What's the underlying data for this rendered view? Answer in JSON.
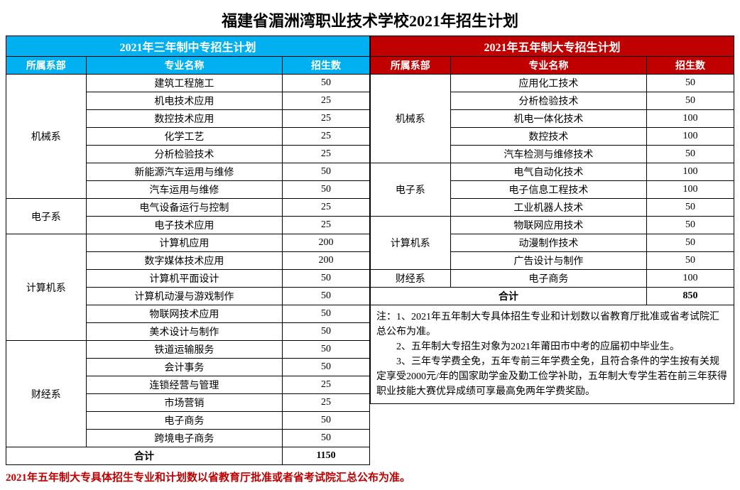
{
  "title": "福建省湄洲湾职业技术学校2021年招生计划",
  "left": {
    "header": "2021年三年制中专招生计划",
    "cols": [
      "所属系部",
      "专业名称",
      "招生数"
    ],
    "groups": [
      {
        "dept": "机械系",
        "rows": [
          [
            "建筑工程施工",
            "50"
          ],
          [
            "机电技术应用",
            "25"
          ],
          [
            "数控技术应用",
            "25"
          ],
          [
            "化学工艺",
            "25"
          ],
          [
            "分析检验技术",
            "25"
          ],
          [
            "新能源汽车运用与维修",
            "50"
          ],
          [
            "汽车运用与维修",
            "50"
          ]
        ]
      },
      {
        "dept": "电子系",
        "rows": [
          [
            "电气设备运行与控制",
            "25"
          ],
          [
            "电子技术应用",
            "25"
          ]
        ]
      },
      {
        "dept": "计算机系",
        "rows": [
          [
            "计算机应用",
            "200"
          ],
          [
            "数字媒体技术应用",
            "200"
          ],
          [
            "计算机平面设计",
            "50"
          ],
          [
            "计算机动漫与游戏制作",
            "50"
          ],
          [
            "物联网技术应用",
            "50"
          ],
          [
            "美术设计与制作",
            "50"
          ]
        ]
      },
      {
        "dept": "财经系",
        "rows": [
          [
            "铁道运输服务",
            "50"
          ],
          [
            "会计事务",
            "50"
          ],
          [
            "连锁经营与管理",
            "25"
          ],
          [
            "市场营销",
            "25"
          ],
          [
            "电子商务",
            "50"
          ],
          [
            "跨境电子商务",
            "50"
          ]
        ]
      }
    ],
    "total_label": "合计",
    "total_value": "1150"
  },
  "right": {
    "header": "2021年五年制大专招生计划",
    "cols": [
      "所属系部",
      "专业名称",
      "招生数"
    ],
    "groups": [
      {
        "dept": "机械系",
        "rows": [
          [
            "应用化工技术",
            "50"
          ],
          [
            "分析检验技术",
            "50"
          ],
          [
            "机电一体化技术",
            "100"
          ],
          [
            "数控技术",
            "100"
          ],
          [
            "汽车检测与维修技术",
            "50"
          ]
        ]
      },
      {
        "dept": "电子系",
        "rows": [
          [
            "电气自动化技术",
            "100"
          ],
          [
            "电子信息工程技术",
            "100"
          ],
          [
            "工业机器人技术",
            "50"
          ]
        ]
      },
      {
        "dept": "计算机系",
        "rows": [
          [
            "物联网应用技术",
            "50"
          ],
          [
            "动漫制作技术",
            "50"
          ],
          [
            "广告设计与制作",
            "50"
          ]
        ]
      },
      {
        "dept": "财经系",
        "rows": [
          [
            "电子商务",
            "100"
          ]
        ]
      }
    ],
    "total_label": "合计",
    "total_value": "850",
    "notes": [
      "注：1、2021年五年制大专具体招生专业和计划数以省教育厅批准或省考试院汇总公布为准。",
      "　　2、五年制大专招生对象为2021年莆田市中考的应届初中毕业生。",
      "　　3、三年专学费全免，五年专前三年学费全免，且符合条件的学生按有关规定享受2000元/年的国家助学金及勤工俭学补助，五年制大专学生若在前三年获得职业技能大赛优异成绩可享最高免两年学费奖励。"
    ]
  },
  "footer": "2021年五年制大专具体招生专业和计划数以省教育厅批准或者省考试院汇总公布为准。"
}
